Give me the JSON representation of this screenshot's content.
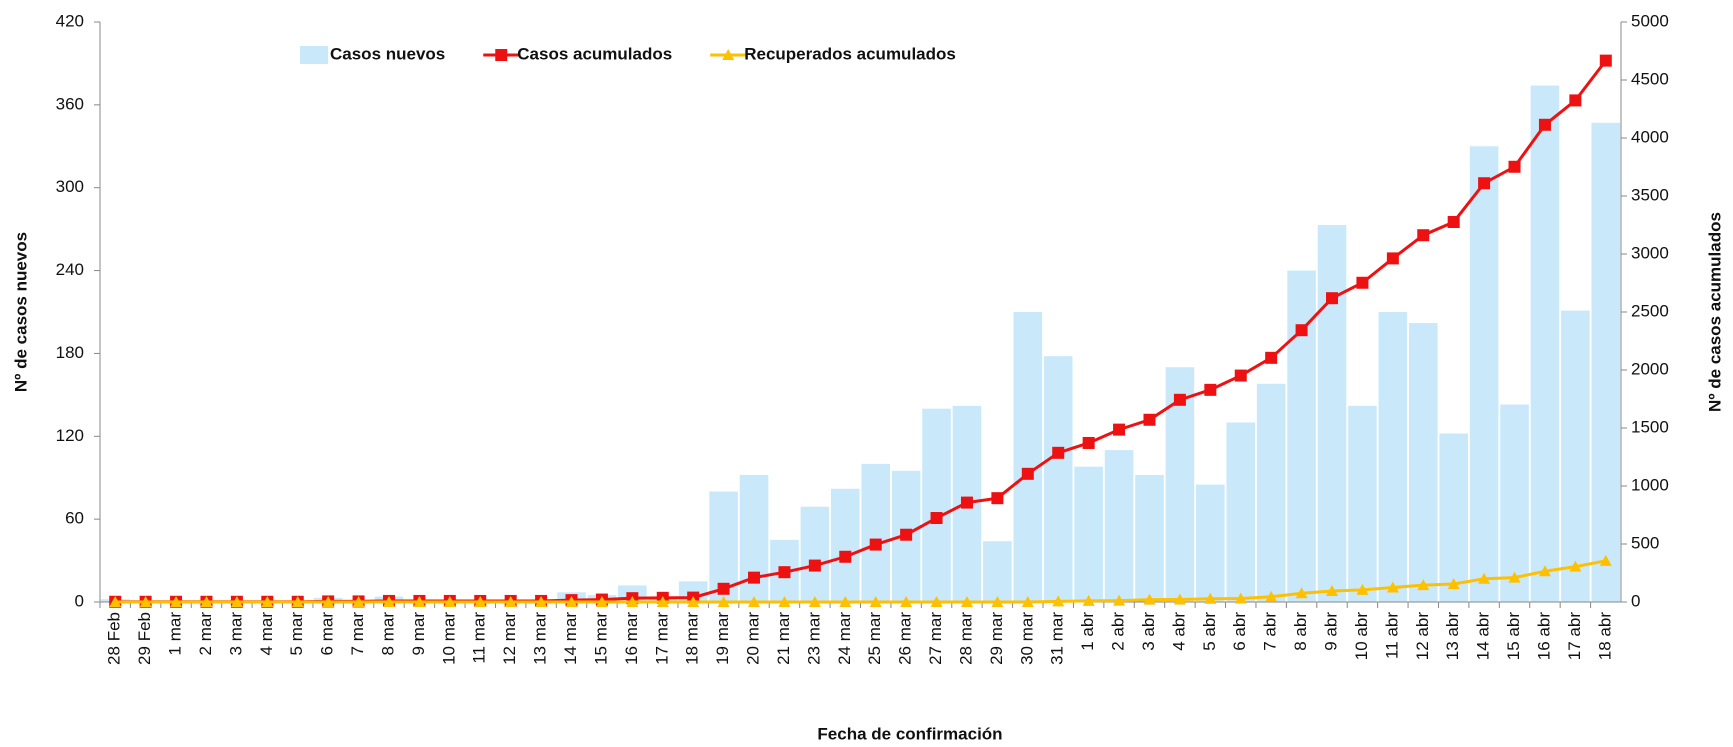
{
  "chart_data": {
    "type": "bar",
    "x_label": "Fecha de confirmación",
    "y_label": "Nº de casos nuevos",
    "y2_label": "Nº de casos acumulados",
    "categories": [
      "28 Feb",
      "29 Feb",
      "1 mar",
      "2 mar",
      "3 mar",
      "4 mar",
      "5 mar",
      "6 mar",
      "7 mar",
      "8 mar",
      "9 mar",
      "10 mar",
      "11 mar",
      "12 mar",
      "13 mar",
      "14 mar",
      "15 mar",
      "16 mar",
      "17 mar",
      "18 mar",
      "19 mar",
      "20 mar",
      "21 mar",
      "23 mar",
      "24 mar",
      "25 mar",
      "26 mar",
      "27 mar",
      "28 mar",
      "29 mar",
      "30 mar",
      "31 mar",
      "1 abr",
      "2 abr",
      "3 abr",
      "4 abr",
      "5 abr",
      "6 abr",
      "7 abr",
      "8 abr",
      "9 abr",
      "10 abr",
      "11 abr",
      "12 abr",
      "13 abr",
      "14 abr",
      "15 abr",
      "16 abr",
      "17 abr",
      "18 abr"
    ],
    "series": [
      {
        "name": "Casos nuevos",
        "type": "bar",
        "color": "#c9e9fb",
        "values": [
          2,
          0,
          0,
          0,
          0,
          0,
          0,
          3,
          0,
          4,
          0,
          0,
          0,
          0,
          0,
          7,
          5,
          12,
          3,
          15,
          80,
          92,
          45,
          69,
          82,
          100,
          95,
          140,
          142,
          44,
          210,
          178,
          98,
          110,
          92,
          170,
          85,
          130,
          158,
          240,
          273,
          142,
          210,
          202,
          122,
          330,
          143,
          374,
          211,
          347
        ]
      },
      {
        "name": "Casos acumulados",
        "type": "line",
        "marker": "square",
        "axis": "y2",
        "color": "#ee1111",
        "values": [
          2,
          2,
          2,
          2,
          2,
          2,
          2,
          5,
          5,
          9,
          9,
          9,
          9,
          9,
          9,
          16,
          21,
          33,
          36,
          38,
          114,
          210,
          257,
          314,
          390,
          495,
          580,
          724,
          857,
          895,
          1105,
          1286,
          1371,
          1486,
          1571,
          1743,
          1829,
          1952,
          2105,
          2343,
          2619,
          2752,
          2962,
          3162,
          3276,
          3610,
          3752,
          4114,
          4324,
          4667
        ]
      },
      {
        "name": "Recuperados acumulados",
        "type": "line",
        "marker": "triangle",
        "axis": "y2",
        "color": "#ffc000",
        "values": [
          0,
          0,
          0,
          0,
          0,
          0,
          0,
          0,
          0,
          0,
          0,
          0,
          0,
          0,
          0,
          0,
          0,
          0,
          0,
          0,
          0,
          0,
          0,
          0,
          0,
          0,
          0,
          0,
          0,
          0,
          0,
          5,
          10,
          12,
          20,
          22,
          28,
          30,
          45,
          75,
          95,
          105,
          125,
          145,
          155,
          200,
          210,
          265,
          305,
          355
        ]
      }
    ],
    "ylim": [
      0,
      420
    ],
    "yticks": [
      0,
      60,
      120,
      180,
      240,
      300,
      360,
      420
    ],
    "y2lim": [
      0,
      5000
    ],
    "y2ticks": [
      0,
      500,
      1000,
      1500,
      2000,
      2500,
      3000,
      3500,
      4000,
      4500,
      5000
    ],
    "grid": false,
    "legend": "top"
  }
}
